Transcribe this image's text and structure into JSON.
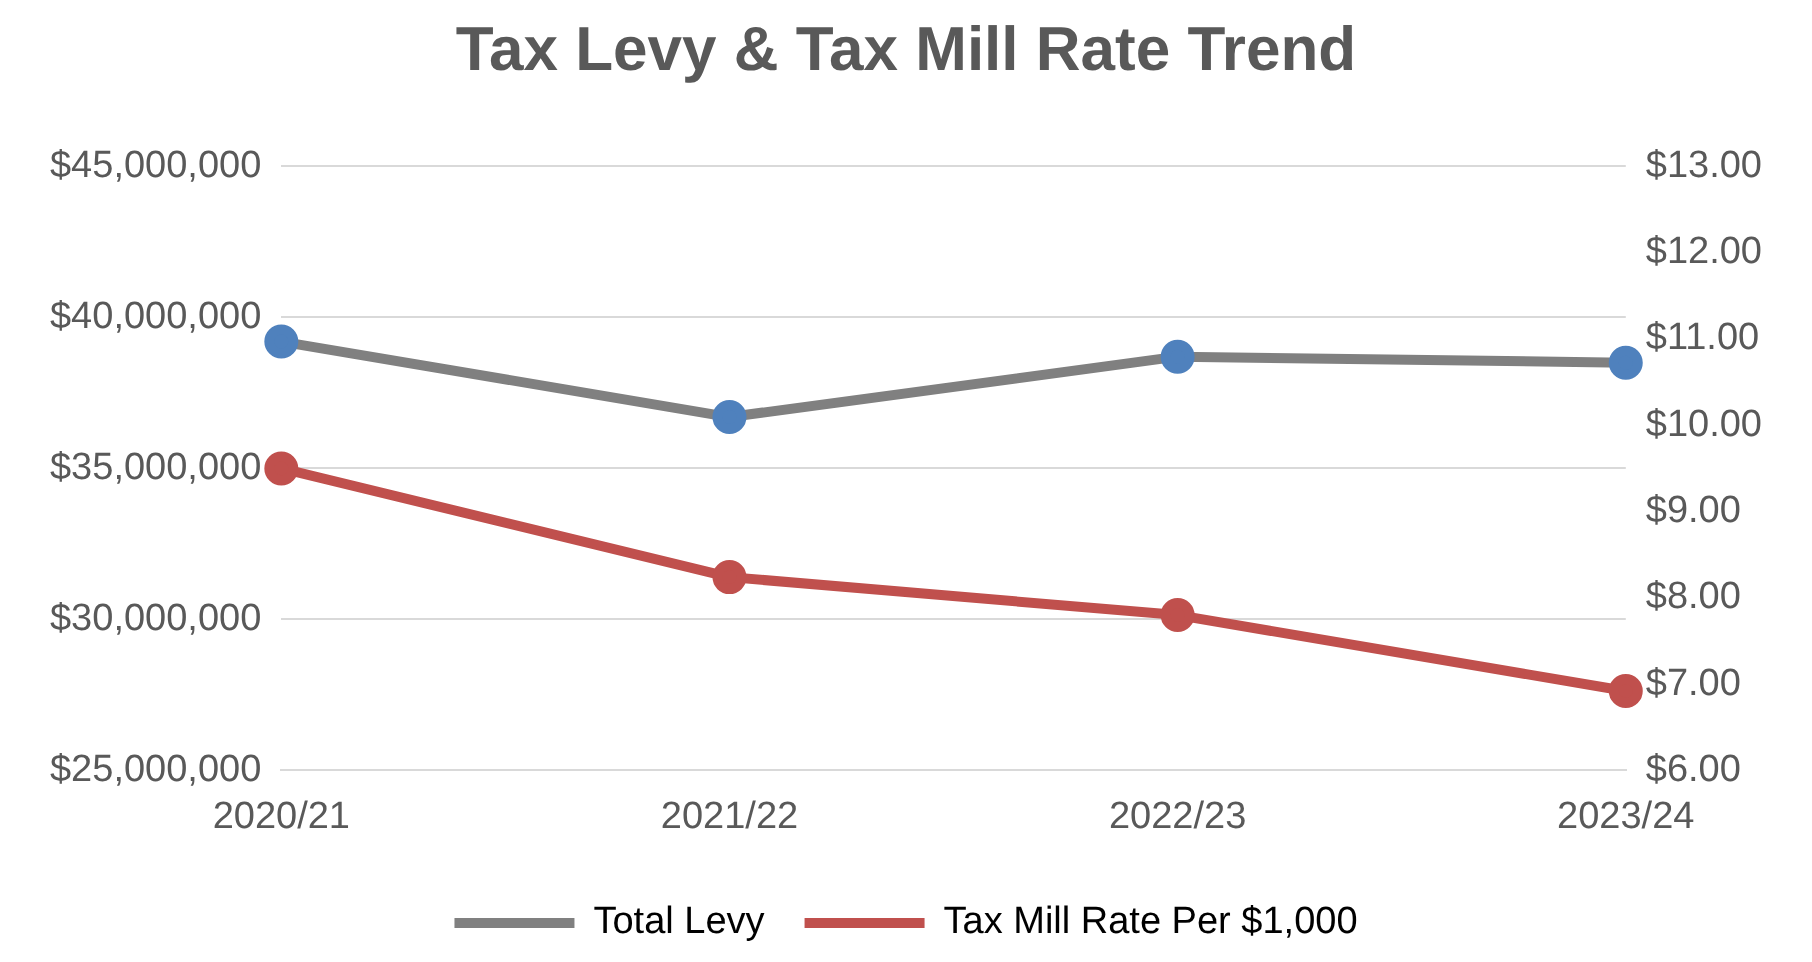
{
  "chart_data": {
    "type": "line",
    "title": "Tax Levy & Tax Mill Rate Trend",
    "categories": [
      "2020/21",
      "2021/22",
      "2022/23",
      "2023/24"
    ],
    "series": [
      {
        "name": "Total Levy",
        "color": "#808080",
        "colors": [
          "#4f81bd",
          "#4f81bd",
          "#4f81bd",
          "#4f81bd"
        ],
        "values": [
          39200000,
          36700000,
          38700000,
          38500000
        ]
      },
      {
        "name": "Tax Mill Rate Per $1,000",
        "color": "#c0504d",
        "colors": [
          "#c0504d",
          "#c0504d",
          "#c0504d",
          "#c0504d"
        ],
        "axis": "y2",
        "values": [
          9.5,
          8.24,
          7.8,
          6.92
        ]
      }
    ],
    "ylim": [
      25000000,
      45000000
    ],
    "yticks": [
      {
        "value": 25000000,
        "label": "$25,000,000"
      },
      {
        "value": 30000000,
        "label": "$30,000,000"
      },
      {
        "value": 35000000,
        "label": "$35,000,000"
      },
      {
        "value": 40000000,
        "label": "$40,000,000"
      },
      {
        "value": 45000000,
        "label": "$45,000,000"
      }
    ],
    "y2lim": [
      6,
      13
    ],
    "y2ticks": [
      {
        "value": 6,
        "label": "$6.00"
      },
      {
        "value": 7,
        "label": "$7.00"
      },
      {
        "value": 8,
        "label": "$8.00"
      },
      {
        "value": 9,
        "label": "$9.00"
      },
      {
        "value": 10,
        "label": "$10.00"
      },
      {
        "value": 11,
        "label": "$11.00"
      },
      {
        "value": 12,
        "label": "$12.00"
      },
      {
        "value": 13,
        "label": "$13.00"
      }
    ],
    "grid": "y",
    "legend": "bottom",
    "marker": "circle",
    "line_style": "solid"
  }
}
